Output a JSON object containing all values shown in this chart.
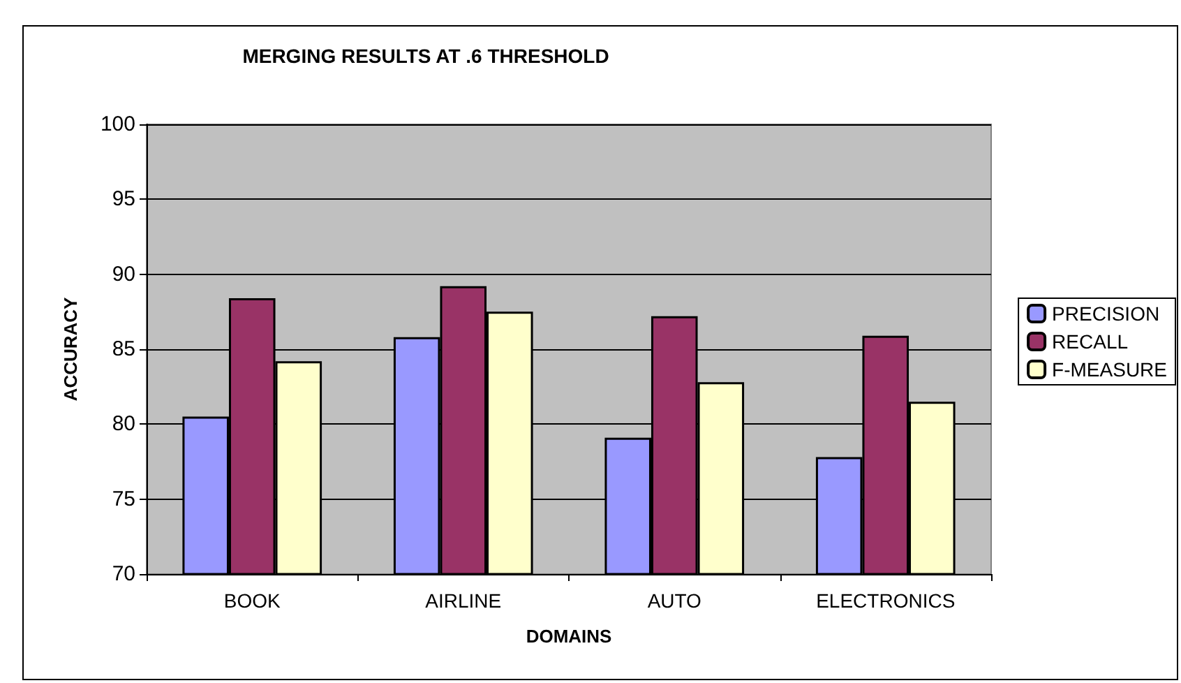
{
  "chart_data": {
    "type": "bar",
    "title": "MERGING RESULTS AT .6 THRESHOLD",
    "xlabel": "DOMAINS",
    "ylabel": "ACCURACY",
    "categories": [
      "BOOK",
      "AIRLINE",
      "AUTO",
      "ELECTRONICS"
    ],
    "series": [
      {
        "name": "PRECISION",
        "color": "#9999ff",
        "values": [
          80.5,
          85.8,
          79.1,
          77.8
        ]
      },
      {
        "name": "RECALL",
        "color": "#993366",
        "values": [
          88.4,
          89.2,
          87.2,
          85.9
        ]
      },
      {
        "name": "F-MEASURE",
        "color": "#ffffcc",
        "values": [
          84.2,
          87.5,
          82.8,
          81.5
        ]
      }
    ],
    "ylim": [
      70,
      100
    ],
    "yticks": [
      70,
      75,
      80,
      85,
      90,
      95,
      100
    ],
    "grid": "y",
    "legend": "right"
  }
}
